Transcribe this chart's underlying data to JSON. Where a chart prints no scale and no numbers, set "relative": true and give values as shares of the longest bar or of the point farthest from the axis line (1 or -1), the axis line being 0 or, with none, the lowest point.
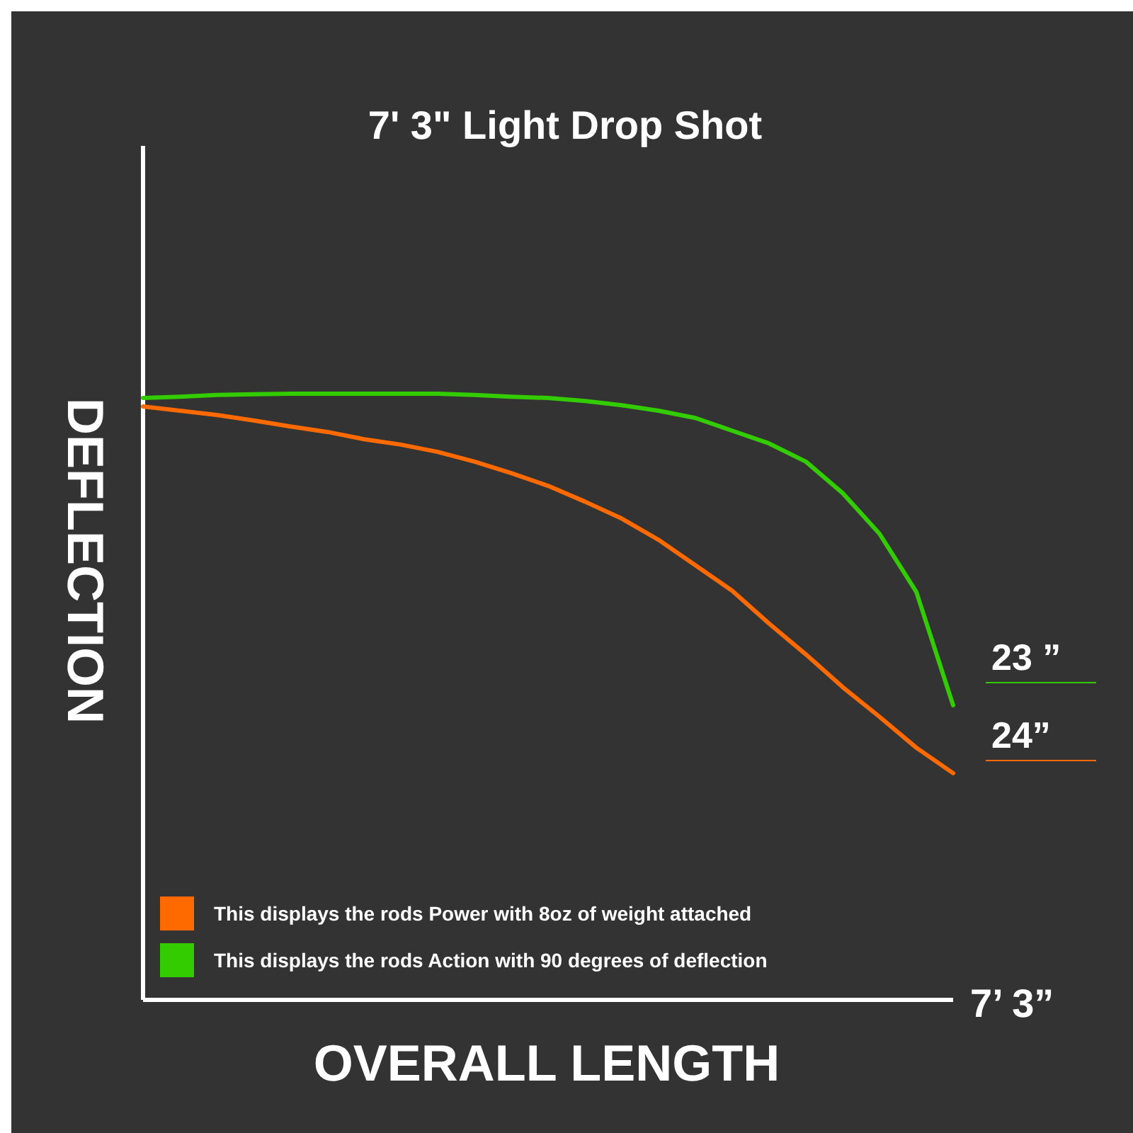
{
  "chart_data": {
    "type": "line",
    "title": "7' 3\"  Light Drop Shot",
    "xlabel": "OVERALL LENGTH",
    "ylabel": "DEFLECTION",
    "relative": true,
    "categories": [
      null,
      null,
      null,
      null,
      null,
      null,
      null,
      null,
      null,
      null,
      null,
      null,
      null,
      null,
      null,
      null,
      null,
      null,
      null,
      null,
      null,
      null,
      null
    ],
    "series": [
      {
        "name": "This displays the rods Power with 8oz of weight attached",
        "color": "#ff6a00",
        "values": [
          0.979,
          0.972,
          0.965,
          0.956,
          0.946,
          0.937,
          0.925,
          0.916,
          0.904,
          0.888,
          0.869,
          0.848,
          0.822,
          0.794,
          0.759,
          0.717,
          0.675,
          0.621,
          0.57,
          0.516,
          0.467,
          0.416,
          0.374
        ]
      },
      {
        "name": "This displays the rods Action with 90 degrees of deflection",
        "color": "#33cc00",
        "values": [
          0.993,
          0.995,
          0.998,
          0.999,
          1,
          1,
          1,
          1,
          1,
          0.998,
          0.995,
          0.993,
          0.988,
          0.981,
          0.972,
          0.96,
          0.939,
          0.918,
          0.888,
          0.836,
          0.769,
          0.673,
          0.486
        ]
      }
    ],
    "annotations": [
      "23 ”",
      "24”",
      "7’ 3”"
    ],
    "legend": "bottom left",
    "marker": "none",
    "line_style": "solid"
  }
}
